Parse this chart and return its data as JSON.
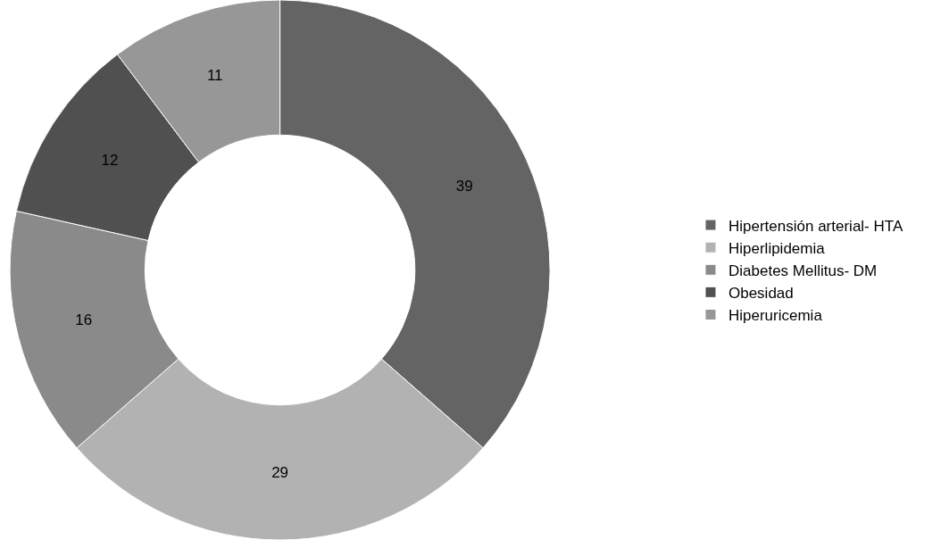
{
  "chart_data": {
    "type": "donut",
    "categories": [
      "Hipertensión arterial- HTA",
      "Hiperlipidemia",
      "Diabetes Mellitus- DM",
      "Obesidad",
      "Hiperuricemia"
    ],
    "values": [
      39,
      29,
      16,
      12,
      11
    ],
    "colors": [
      "#646464",
      "#b2b2b2",
      "#8a8a8a",
      "#505050",
      "#979797"
    ],
    "data_labels": true,
    "legend": "right"
  }
}
